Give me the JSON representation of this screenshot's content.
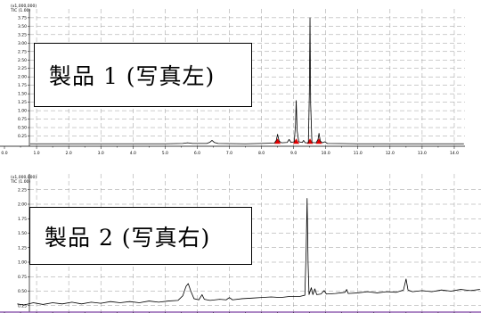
{
  "chart_data": [
    {
      "type": "line",
      "label_box": "製品 1 (写真左)",
      "scale_note": "(x1,000,000)",
      "trace_label": "TIC (1.00)",
      "xlim": [
        0,
        14.5
      ],
      "ylim": [
        0,
        4.0
      ],
      "grid": true,
      "line_color": "#000000",
      "integration_color": "#e00000",
      "y_ticks": [
        "0.25",
        "0.50",
        "0.75",
        "1.00",
        "1.25",
        "1.50",
        "1.75",
        "2.00",
        "2.25",
        "2.50",
        "2.75",
        "3.00",
        "3.25",
        "3.50",
        "3.75"
      ],
      "x_ticks": [
        "0.0",
        "1.0",
        "2.0",
        "3.0",
        "4.0",
        "5.0",
        "6.0",
        "7.0",
        "8.0",
        "9.0",
        "10.0",
        "11.0",
        "12.0",
        "13.0",
        "14.0"
      ],
      "integrated_peaks_x": [
        8.5,
        9.08,
        9.51,
        9.79
      ],
      "points": [
        [
          0.8,
          0.02
        ],
        [
          2.0,
          0.02
        ],
        [
          3.0,
          0.02
        ],
        [
          4.0,
          0.02
        ],
        [
          5.0,
          0.02
        ],
        [
          5.55,
          0.03
        ],
        [
          5.7,
          0.05
        ],
        [
          5.85,
          0.03
        ],
        [
          6.3,
          0.03
        ],
        [
          6.4,
          0.07
        ],
        [
          6.46,
          0.12
        ],
        [
          6.53,
          0.06
        ],
        [
          6.65,
          0.03
        ],
        [
          7.5,
          0.02
        ],
        [
          8.0,
          0.03
        ],
        [
          8.4,
          0.04
        ],
        [
          8.46,
          0.12
        ],
        [
          8.5,
          0.3
        ],
        [
          8.55,
          0.1
        ],
        [
          8.62,
          0.05
        ],
        [
          8.8,
          0.06
        ],
        [
          8.86,
          0.15
        ],
        [
          8.92,
          0.06
        ],
        [
          9.02,
          0.08
        ],
        [
          9.06,
          0.6
        ],
        [
          9.08,
          1.3
        ],
        [
          9.11,
          0.4
        ],
        [
          9.16,
          0.08
        ],
        [
          9.27,
          0.06
        ],
        [
          9.31,
          0.12
        ],
        [
          9.36,
          0.05
        ],
        [
          9.46,
          0.05
        ],
        [
          9.49,
          1.5
        ],
        [
          9.51,
          3.75
        ],
        [
          9.53,
          1.2
        ],
        [
          9.57,
          0.06
        ],
        [
          9.7,
          0.05
        ],
        [
          9.76,
          0.15
        ],
        [
          9.79,
          0.33
        ],
        [
          9.83,
          0.1
        ],
        [
          9.9,
          0.05
        ],
        [
          9.97,
          0.08
        ],
        [
          10.05,
          0.03
        ],
        [
          11.0,
          0.02
        ],
        [
          12.0,
          0.02
        ],
        [
          13.0,
          0.02
        ],
        [
          14.3,
          0.02
        ]
      ]
    },
    {
      "type": "line",
      "label_box": "製品 2 (写真右)",
      "scale_note": "(x1,000,000)",
      "trace_label": "TIC (1.00)",
      "xlim": [
        0,
        14.8
      ],
      "ylim": [
        0,
        2.5
      ],
      "grid": true,
      "line_color": "#000000",
      "axis_color": "#7b3fa0",
      "y_ticks": [
        "0.25",
        "0.50",
        "0.75",
        "1.00",
        "1.25",
        "1.50",
        "1.75",
        "2.00",
        "2.25"
      ],
      "points": [
        [
          0.4,
          0.28
        ],
        [
          0.6,
          0.26
        ],
        [
          0.9,
          0.3
        ],
        [
          1.2,
          0.27
        ],
        [
          1.5,
          0.3
        ],
        [
          1.8,
          0.28
        ],
        [
          2.1,
          0.31
        ],
        [
          2.4,
          0.28
        ],
        [
          2.7,
          0.31
        ],
        [
          3.0,
          0.29
        ],
        [
          3.3,
          0.32
        ],
        [
          3.6,
          0.3
        ],
        [
          3.9,
          0.32
        ],
        [
          4.2,
          0.3
        ],
        [
          4.5,
          0.33
        ],
        [
          4.8,
          0.31
        ],
        [
          5.1,
          0.33
        ],
        [
          5.4,
          0.34
        ],
        [
          5.55,
          0.42
        ],
        [
          5.65,
          0.58
        ],
        [
          5.72,
          0.63
        ],
        [
          5.8,
          0.5
        ],
        [
          5.9,
          0.37
        ],
        [
          6.05,
          0.35
        ],
        [
          6.15,
          0.44
        ],
        [
          6.22,
          0.36
        ],
        [
          6.4,
          0.34
        ],
        [
          6.7,
          0.36
        ],
        [
          6.9,
          0.35
        ],
        [
          7.0,
          0.39
        ],
        [
          7.1,
          0.35
        ],
        [
          7.4,
          0.37
        ],
        [
          7.7,
          0.38
        ],
        [
          8.0,
          0.39
        ],
        [
          8.3,
          0.4
        ],
        [
          8.6,
          0.39
        ],
        [
          8.9,
          0.41
        ],
        [
          9.2,
          0.41
        ],
        [
          9.35,
          0.43
        ],
        [
          9.39,
          1.2
        ],
        [
          9.42,
          2.1
        ],
        [
          9.45,
          1.0
        ],
        [
          9.48,
          0.44
        ],
        [
          9.55,
          0.56
        ],
        [
          9.6,
          0.44
        ],
        [
          9.66,
          0.54
        ],
        [
          9.72,
          0.44
        ],
        [
          9.85,
          0.45
        ],
        [
          9.95,
          0.51
        ],
        [
          10.02,
          0.45
        ],
        [
          10.3,
          0.46
        ],
        [
          10.6,
          0.48
        ],
        [
          10.65,
          0.53
        ],
        [
          10.7,
          0.46
        ],
        [
          11.0,
          0.47
        ],
        [
          11.3,
          0.49
        ],
        [
          11.6,
          0.47
        ],
        [
          11.9,
          0.49
        ],
        [
          12.2,
          0.48
        ],
        [
          12.42,
          0.52
        ],
        [
          12.5,
          0.71
        ],
        [
          12.56,
          0.52
        ],
        [
          12.7,
          0.49
        ],
        [
          13.0,
          0.51
        ],
        [
          13.3,
          0.49
        ],
        [
          13.6,
          0.52
        ],
        [
          13.9,
          0.5
        ],
        [
          14.2,
          0.53
        ],
        [
          14.5,
          0.51
        ],
        [
          14.8,
          0.53
        ]
      ]
    }
  ]
}
